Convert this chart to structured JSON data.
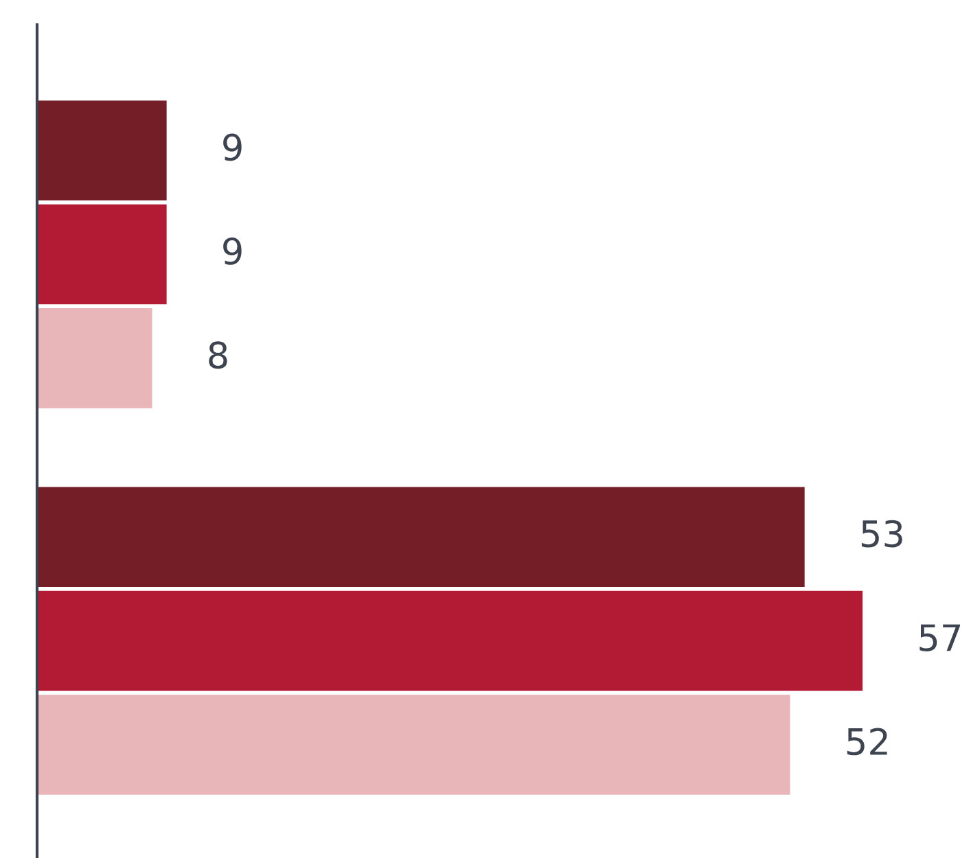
{
  "chart_data": {
    "type": "bar",
    "orientation": "horizontal",
    "categories": [
      null,
      null
    ],
    "data_labels": true,
    "series": [
      {
        "color": "#741f28",
        "values": [
          9,
          53
        ]
      },
      {
        "color": "#b31b34",
        "values": [
          9,
          57
        ]
      },
      {
        "color": "#e8b5b9",
        "values": [
          8,
          52
        ]
      }
    ]
  }
}
